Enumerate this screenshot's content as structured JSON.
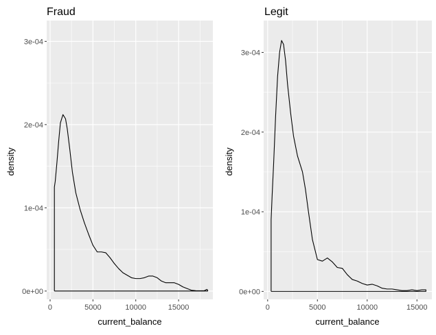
{
  "chart_data": [
    {
      "type": "line",
      "title": "Fraud",
      "xlabel": "current_balance",
      "ylabel": "density",
      "xlim": [
        -400,
        19000
      ],
      "ylim": [
        -1e-05,
        0.000325
      ],
      "x_ticks": [
        0,
        5000,
        10000,
        15000
      ],
      "x_tick_labels": [
        "0",
        "5000",
        "10000",
        "15000"
      ],
      "y_ticks": [
        0,
        0.0001,
        0.0002,
        0.0003
      ],
      "y_tick_labels": [
        "0e+00",
        "1e-04",
        "2e-04",
        "3e-04"
      ],
      "grid": true,
      "background": "#ebebeb",
      "line_color": "#000000",
      "series": [
        {
          "x": [
            500,
            600,
            800,
            1000,
            1200,
            1500,
            1800,
            2000,
            2300,
            2600,
            3000,
            3500,
            4000,
            4500,
            5000,
            5500,
            6000,
            6500,
            7000,
            7500,
            8000,
            8500,
            9000,
            9500,
            10000,
            10500,
            11000,
            11500,
            12000,
            12500,
            13000,
            13500,
            14000,
            14500,
            15000,
            15500,
            16000,
            16500,
            17000,
            17500,
            18000,
            18300,
            18400,
            18400
          ],
          "y": [
            0.000125,
            0.000132,
            0.000155,
            0.00018,
            0.000202,
            0.000212,
            0.000207,
            0.000195,
            0.00017,
            0.000143,
            0.000118,
            9.8e-05,
            8.2e-05,
            6.8e-05,
            5.5e-05,
            4.7e-05,
            4.7e-05,
            4.6e-05,
            4e-05,
            3.3e-05,
            2.7e-05,
            2.2e-05,
            1.9e-05,
            1.6e-05,
            1.5e-05,
            1.5e-05,
            1.6e-05,
            1.8e-05,
            1.8e-05,
            1.6e-05,
            1.2e-05,
            1e-05,
            1e-05,
            1e-05,
            8e-06,
            5e-06,
            3e-06,
            1e-06,
            5e-07,
            3e-07,
            4e-07,
            2e-06,
            1e-06,
            0
          ]
        }
      ]
    },
    {
      "type": "line",
      "title": "Legit",
      "xlabel": "current_balance",
      "ylabel": "density",
      "xlim": [
        -400,
        16500
      ],
      "ylim": [
        -1e-05,
        0.00034
      ],
      "x_ticks": [
        0,
        5000,
        10000,
        15000
      ],
      "x_tick_labels": [
        "0",
        "5000",
        "10000",
        "15000"
      ],
      "y_ticks": [
        0,
        0.0001,
        0.0002,
        0.0003
      ],
      "y_tick_labels": [
        "0e+00",
        "1e-04",
        "2e-04",
        "3e-04"
      ],
      "grid": true,
      "background": "#ebebeb",
      "line_color": "#000000",
      "series": [
        {
          "x": [
            350,
            450,
            600,
            800,
            1000,
            1200,
            1400,
            1600,
            1800,
            2000,
            2300,
            2600,
            3000,
            3500,
            3800,
            4100,
            4500,
            5000,
            5500,
            6000,
            6500,
            7000,
            7500,
            8000,
            8500,
            9000,
            9500,
            10000,
            10500,
            11000,
            11500,
            12000,
            12500,
            13000,
            13500,
            14000,
            14500,
            15000,
            15500,
            15900,
            15900
          ],
          "y": [
            9e-05,
            0.00012,
            0.00016,
            0.00022,
            0.00027,
            0.0003,
            0.000315,
            0.00031,
            0.00029,
            0.00026,
            0.000225,
            0.000195,
            0.00017,
            0.00015,
            0.000128,
            0.0001,
            6.5e-05,
            4e-05,
            3.8e-05,
            4.2e-05,
            3.7e-05,
            3e-05,
            2.9e-05,
            2.1e-05,
            1.5e-05,
            1.3e-05,
            1e-05,
            8e-06,
            9e-06,
            7e-06,
            4e-06,
            3e-06,
            3e-06,
            2e-06,
            1e-06,
            1e-06,
            2e-06,
            1e-06,
            2e-06,
            2e-06,
            0
          ]
        }
      ]
    }
  ]
}
